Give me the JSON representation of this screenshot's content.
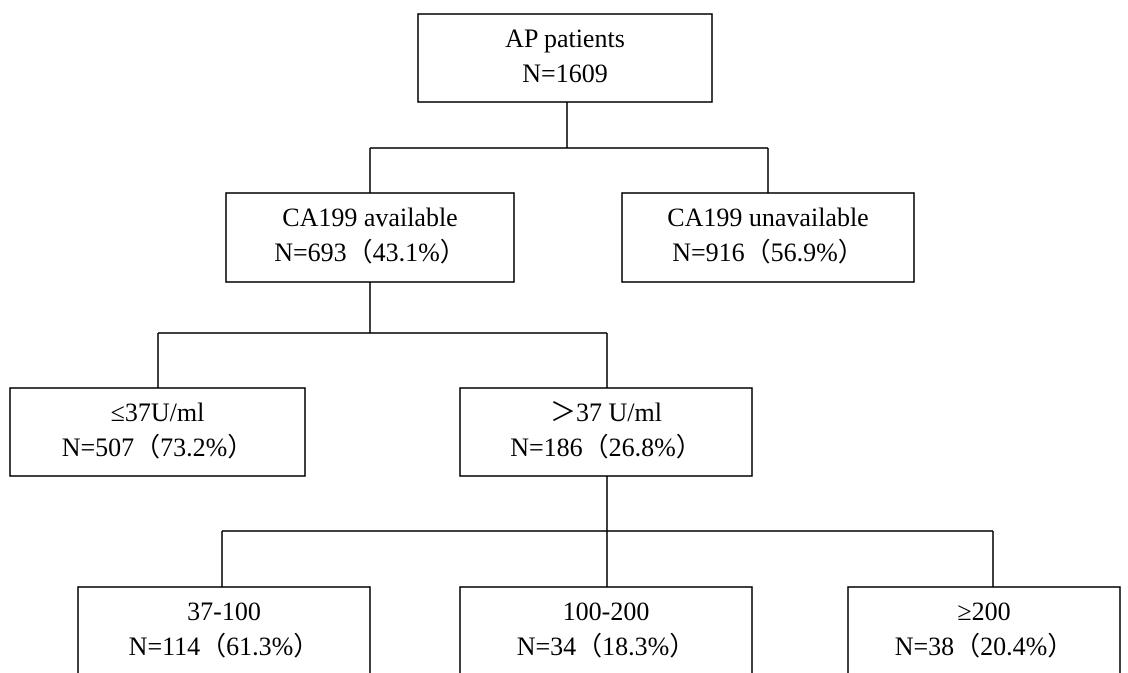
{
  "nodes": [
    {
      "lines": [
        "AP patients",
        "N=1609"
      ]
    },
    {
      "lines": [
        "CA199 available",
        "N=693（43.1%）"
      ]
    },
    {
      "lines": [
        "CA199 unavailable",
        "N=916（56.9%）"
      ]
    },
    {
      "lines": [
        "≤37U/ml",
        "N=507（73.2%）"
      ]
    },
    {
      "lines": [
        "＞37 U/ml",
        "N=186（26.8%）"
      ]
    },
    {
      "lines": [
        "37-100",
        "N=114（61.3%）"
      ]
    },
    {
      "lines": [
        "100-200",
        "N=34（18.3%）"
      ]
    },
    {
      "lines": [
        "≥200",
        "N=38（20.4%）"
      ]
    }
  ]
}
